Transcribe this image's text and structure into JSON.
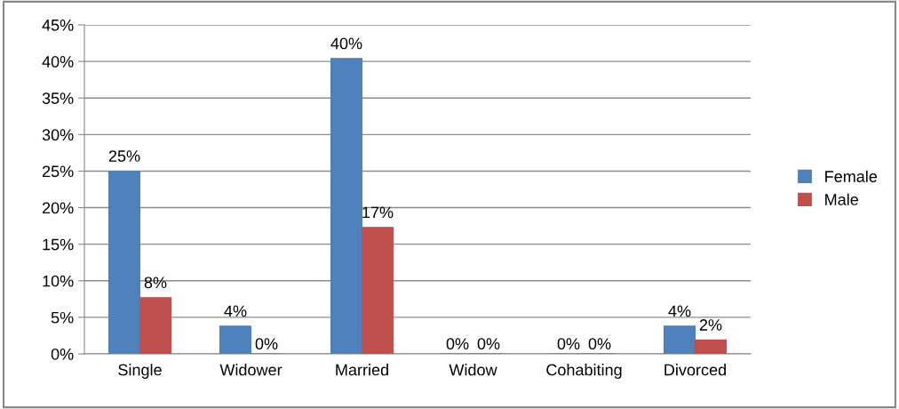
{
  "chart_data": {
    "type": "bar",
    "categories": [
      "Single",
      "Widower",
      "Married",
      "Widow",
      "Cohabiting",
      "Divorced"
    ],
    "series": [
      {
        "name": "Female",
        "color": "#4f81bd",
        "values": [
          25.0,
          3.8,
          40.4,
          0,
          0,
          3.8
        ],
        "value_labels": [
          "25%",
          "4%",
          "40%",
          "0%",
          "0%",
          "4%"
        ]
      },
      {
        "name": "Male",
        "color": "#c0504d",
        "values": [
          7.7,
          0,
          17.3,
          0,
          0,
          1.9
        ],
        "value_labels": [
          "8%",
          "0%",
          "17%",
          "0%",
          "0%",
          "2%"
        ]
      }
    ],
    "ylim": [
      0,
      45
    ],
    "yticks": [
      {
        "value": 0,
        "label": "0%"
      },
      {
        "value": 5,
        "label": "5%"
      },
      {
        "value": 10,
        "label": "10%"
      },
      {
        "value": 15,
        "label": "15%"
      },
      {
        "value": 20,
        "label": "20%"
      },
      {
        "value": 25,
        "label": "25%"
      },
      {
        "value": 30,
        "label": "30%"
      },
      {
        "value": 35,
        "label": "35%"
      },
      {
        "value": 40,
        "label": "40%"
      },
      {
        "value": 45,
        "label": "45%"
      }
    ],
    "grid": "y",
    "legend": "right"
  }
}
